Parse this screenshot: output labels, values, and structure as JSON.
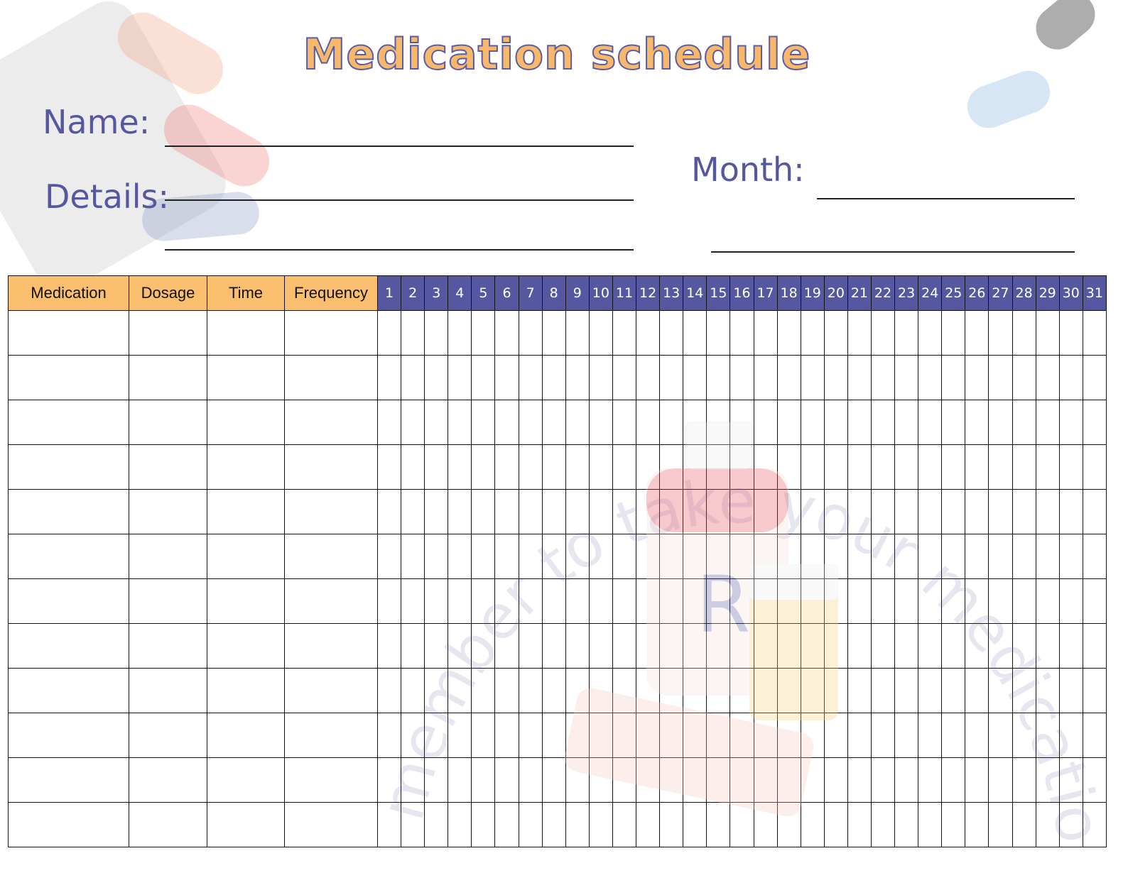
{
  "title": "Medication schedule",
  "form": {
    "name_label": "Name:",
    "details_label": "Details:",
    "month_label": "Month:"
  },
  "watermark": "remember to take your medication",
  "colors": {
    "header_orange": "#F9BE6E",
    "header_purple": "#5558A0",
    "label": "#5558A0"
  },
  "table": {
    "columns": [
      "Medication",
      "Dosage",
      "Time",
      "Frequency"
    ],
    "days": [
      "1",
      "2",
      "3",
      "4",
      "5",
      "6",
      "7",
      "8",
      "9",
      "10",
      "11",
      "12",
      "13",
      "14",
      "15",
      "16",
      "17",
      "18",
      "19",
      "20",
      "21",
      "22",
      "23",
      "24",
      "25",
      "26",
      "27",
      "28",
      "29",
      "30",
      "31"
    ],
    "row_count": 12
  }
}
